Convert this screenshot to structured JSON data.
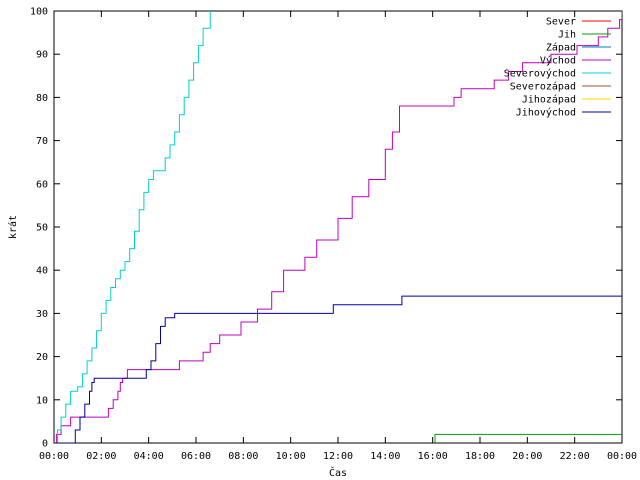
{
  "chart_data": {
    "type": "line",
    "title": "",
    "xlabel": "Čas",
    "ylabel": "krát",
    "xlim": [
      0,
      24
    ],
    "ylim": [
      0,
      100
    ],
    "x_ticks": [
      "00:00",
      "02:00",
      "04:00",
      "06:00",
      "08:00",
      "10:00",
      "12:00",
      "14:00",
      "16:00",
      "18:00",
      "20:00",
      "22:00",
      "00:00"
    ],
    "y_ticks": [
      "0",
      "10",
      "20",
      "30",
      "40",
      "50",
      "60",
      "70",
      "80",
      "90",
      "100"
    ],
    "grid": false,
    "legend_position": "top-right",
    "series": [
      {
        "name": "Sever",
        "color": "#ff0000",
        "x": [],
        "y": []
      },
      {
        "name": "Jih",
        "color": "#00a000",
        "x": [
          16.1,
          16.1,
          24.0
        ],
        "y": [
          0,
          2,
          2
        ]
      },
      {
        "name": "Západ",
        "color": "#0080c0",
        "x": [],
        "y": []
      },
      {
        "name": "Východ",
        "color": "#c000c0",
        "x": [
          0.0,
          0.1,
          0.3,
          0.7,
          1.2,
          1.5,
          2.3,
          2.5,
          2.7,
          2.8,
          2.9,
          3.0,
          3.1,
          3.3,
          3.8,
          5.3,
          6.3,
          6.6,
          7.0,
          7.9,
          8.6,
          9.2,
          9.7,
          10.6,
          11.1,
          12.0,
          12.6,
          13.3,
          14.0,
          14.3,
          14.6,
          15.0,
          16.2,
          16.9,
          17.2,
          18.1,
          18.6,
          19.2,
          19.8,
          21.0,
          22.1,
          23.0,
          23.4,
          23.9,
          24.0
        ],
        "y": [
          0,
          2,
          4,
          6,
          6,
          6,
          8,
          10,
          12,
          14,
          15,
          15,
          17,
          17,
          17,
          19,
          21,
          23,
          25,
          28,
          31,
          35,
          40,
          43,
          47,
          52,
          57,
          61,
          68,
          72,
          78,
          78,
          78,
          80,
          82,
          82,
          84,
          86,
          88,
          90,
          92,
          94,
          96,
          98,
          100
        ]
      },
      {
        "name": "Severovýchod",
        "color": "#00d0d0",
        "x": [
          0.0,
          0.15,
          0.3,
          0.5,
          0.7,
          1.0,
          1.2,
          1.4,
          1.6,
          1.8,
          2.0,
          2.2,
          2.4,
          2.6,
          2.8,
          3.0,
          3.2,
          3.4,
          3.6,
          3.8,
          4.0,
          4.2,
          4.4,
          4.7,
          4.9,
          5.1,
          5.3,
          5.5,
          5.7,
          5.9,
          6.1,
          6.3,
          6.6
        ],
        "y": [
          0,
          3,
          6,
          9,
          12,
          13,
          16,
          19,
          22,
          26,
          30,
          33,
          36,
          38,
          40,
          42,
          45,
          49,
          54,
          58,
          61,
          63,
          63,
          66,
          69,
          72,
          76,
          80,
          84,
          88,
          92,
          96,
          100
        ]
      },
      {
        "name": "Severozápad",
        "color": "#a0522d",
        "x": [],
        "y": []
      },
      {
        "name": "Jihozápad",
        "color": "#ffd700",
        "x": [],
        "y": []
      },
      {
        "name": "Jihovýchod",
        "color": "#0000a0",
        "x": [
          0.0,
          0.7,
          0.9,
          1.1,
          1.3,
          1.5,
          1.6,
          1.7,
          3.3,
          3.9,
          4.1,
          4.3,
          4.5,
          4.7,
          4.9,
          5.1,
          8.0,
          11.7,
          11.8,
          14.6,
          14.7,
          24.0
        ],
        "y": [
          0,
          0,
          3,
          6,
          9,
          12,
          14,
          15,
          15,
          17,
          19,
          23,
          27,
          29,
          29,
          30,
          30,
          30,
          32,
          32,
          34,
          34
        ]
      }
    ]
  }
}
